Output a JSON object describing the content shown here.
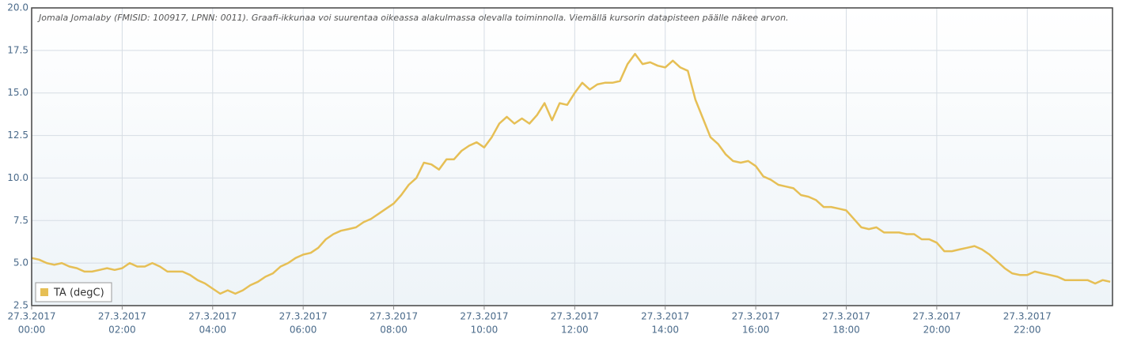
{
  "chart_data": {
    "type": "line",
    "subtitle": "Jomala Jomalaby (FMISID: 100917, LPNN: 0011). Graafi-ikkunaa voi suurentaa oikeassa alakulmassa olevalla toiminnolla. Viemällä kursorin datapisteen päälle näkee arvon.",
    "x": [
      0,
      10,
      20,
      30,
      40,
      50,
      60,
      70,
      80,
      90,
      100,
      110,
      120,
      130,
      140,
      150,
      160,
      170,
      180,
      190,
      200,
      210,
      220,
      230,
      240,
      250,
      260,
      270,
      280,
      290,
      300,
      310,
      320,
      330,
      340,
      350,
      360,
      370,
      380,
      390,
      400,
      410,
      420,
      430,
      440,
      450,
      460,
      470,
      480,
      490,
      500,
      510,
      520,
      530,
      540,
      550,
      560,
      570,
      580,
      590,
      600,
      610,
      620,
      630,
      640,
      650,
      660,
      670,
      680,
      690,
      700,
      710,
      720,
      730,
      740,
      750,
      760,
      770,
      780,
      790,
      800,
      810,
      820,
      830,
      840,
      850,
      860,
      870,
      880,
      890,
      900,
      910,
      920,
      930,
      940,
      950,
      960,
      970,
      980,
      990,
      1000,
      1010,
      1020,
      1030,
      1040,
      1050,
      1060,
      1070,
      1080,
      1090,
      1100,
      1110,
      1120,
      1130,
      1140,
      1150,
      1160,
      1170,
      1180,
      1190,
      1200,
      1210,
      1220,
      1230,
      1240,
      1250,
      1260,
      1270,
      1280,
      1290,
      1300,
      1310,
      1320,
      1330,
      1340,
      1350,
      1360,
      1370,
      1380,
      1390,
      1400,
      1410,
      1420,
      1430
    ],
    "series": [
      {
        "name": "TA (degC)",
        "color": "#e6bf55",
        "values": [
          5.3,
          5.2,
          5.0,
          4.9,
          5.0,
          4.8,
          4.7,
          4.5,
          4.5,
          4.6,
          4.7,
          4.6,
          4.7,
          5.0,
          4.8,
          4.8,
          5.0,
          4.8,
          4.5,
          4.5,
          4.5,
          4.3,
          4.0,
          3.8,
          3.5,
          3.2,
          3.4,
          3.2,
          3.4,
          3.7,
          3.9,
          4.2,
          4.4,
          4.8,
          5.0,
          5.3,
          5.5,
          5.6,
          5.9,
          6.4,
          6.7,
          6.9,
          7.0,
          7.1,
          7.4,
          7.6,
          7.9,
          8.2,
          8.5,
          9.0,
          9.6,
          10.0,
          10.9,
          10.8,
          10.5,
          11.1,
          11.1,
          11.6,
          11.9,
          12.1,
          11.8,
          12.4,
          13.2,
          13.6,
          13.2,
          13.5,
          13.2,
          13.7,
          14.4,
          13.4,
          14.4,
          14.3,
          15.0,
          15.6,
          15.2,
          15.5,
          15.6,
          15.6,
          15.7,
          16.7,
          17.3,
          16.7,
          16.8,
          16.6,
          16.5,
          16.9,
          16.5,
          16.3,
          14.6,
          13.5,
          12.4,
          12.0,
          11.4,
          11.0,
          10.9,
          11.0,
          10.7,
          10.1,
          9.9,
          9.6,
          9.5,
          9.4,
          9.0,
          8.9,
          8.7,
          8.3,
          8.3,
          8.2,
          8.1,
          7.6,
          7.1,
          7.0,
          7.1,
          6.8,
          6.8,
          6.8,
          6.7,
          6.7,
          6.4,
          6.4,
          6.2,
          5.7,
          5.7,
          5.8,
          5.9,
          6.0,
          5.8,
          5.5,
          5.1,
          4.7,
          4.4,
          4.3,
          4.3,
          4.5,
          4.4,
          4.3,
          4.2,
          4.0,
          4.0,
          4.0,
          4.0,
          3.8,
          4.0,
          3.9
        ]
      }
    ],
    "xlim": [
      0,
      1433
    ],
    "xticks": [
      {
        "value": 0,
        "date": "27.3.2017",
        "label": "00:00"
      },
      {
        "value": 120,
        "date": "27.3.2017",
        "label": "02:00"
      },
      {
        "value": 240,
        "date": "27.3.2017",
        "label": "04:00"
      },
      {
        "value": 360,
        "date": "27.3.2017",
        "label": "06:00"
      },
      {
        "value": 480,
        "date": "27.3.2017",
        "label": "08:00"
      },
      {
        "value": 600,
        "date": "27.3.2017",
        "label": "10:00"
      },
      {
        "value": 720,
        "date": "27.3.2017",
        "label": "12:00"
      },
      {
        "value": 840,
        "date": "27.3.2017",
        "label": "14:00"
      },
      {
        "value": 960,
        "date": "27.3.2017",
        "label": "16:00"
      },
      {
        "value": 1080,
        "date": "27.3.2017",
        "label": "18:00"
      },
      {
        "value": 1200,
        "date": "27.3.2017",
        "label": "20:00"
      },
      {
        "value": 1320,
        "date": "27.3.2017",
        "label": "22:00"
      }
    ],
    "ylim": [
      2.5,
      20
    ],
    "yticks": [
      {
        "value": 2.5,
        "label": "2.5"
      },
      {
        "value": 5,
        "label": "5.0"
      },
      {
        "value": 7.5,
        "label": "7.5"
      },
      {
        "value": 10,
        "label": "10.0"
      },
      {
        "value": 12.5,
        "label": "12.5"
      },
      {
        "value": 15,
        "label": "15.0"
      },
      {
        "value": 17.5,
        "label": "17.5"
      },
      {
        "value": 20,
        "label": "20.0"
      }
    ],
    "grid": true,
    "legend": "bottom-left"
  }
}
